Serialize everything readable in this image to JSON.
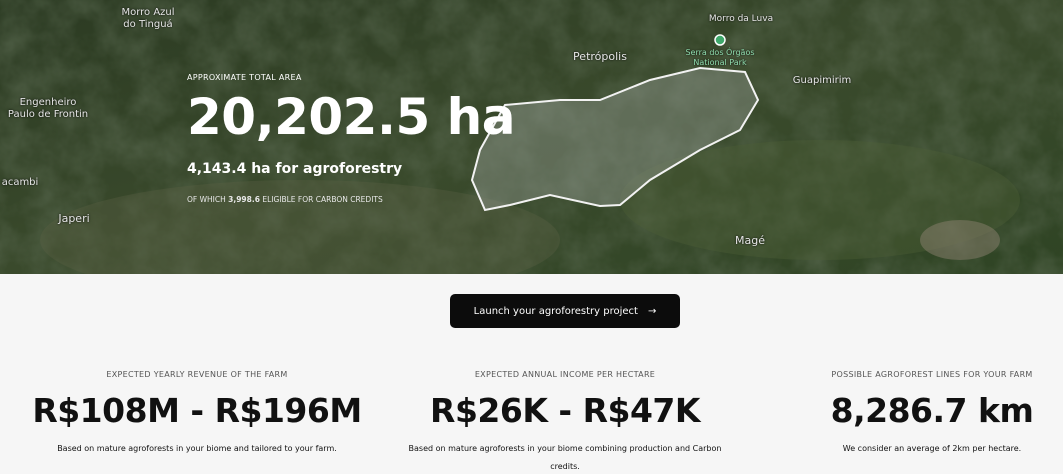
{
  "map": {
    "labels": [
      {
        "lines": [
          "Morro Azul",
          "do Tinguá"
        ]
      },
      {
        "lines": [
          "Engenheiro",
          "Paulo de Frontin"
        ]
      },
      {
        "lines": [
          "acambi"
        ]
      },
      {
        "lines": [
          "Japeri"
        ]
      },
      {
        "lines": [
          "Petrópolis"
        ]
      },
      {
        "lines": [
          "Morro da Luva"
        ]
      },
      {
        "lines": [
          "Serra dos Órgãos",
          "National Park"
        ]
      },
      {
        "lines": [
          "Guapimirim"
        ]
      },
      {
        "lines": [
          "Magé"
        ]
      }
    ]
  },
  "hero": {
    "eyebrow": "APPROXIMATE TOTAL AREA",
    "total_area": "20,202.5 ha",
    "agroforestry_area": "4,143.4 ha for agroforestry",
    "carbon": {
      "prefix": "OF WHICH",
      "amount": "3,998.6",
      "suffix": "ELIGIBLE FOR CARBON CREDITS"
    }
  },
  "cta": {
    "label": "Launch your agroforestry project",
    "arrow": "→"
  },
  "stats": [
    {
      "label": "EXPECTED YEARLY REVENUE OF THE FARM",
      "value": "R$108M - R$196M",
      "note": "Based on mature agroforests in your biome and tailored to your farm."
    },
    {
      "label": "EXPECTED ANNUAL INCOME PER HECTARE",
      "value": "R$26K - R$47K",
      "note": "Based on mature agroforests in your biome combining production and Carbon credits."
    },
    {
      "label": "POSSIBLE AGROFOREST LINES FOR YOUR FARM",
      "value": "8,286.7 km",
      "note": "We consider an average of 2km per hectare."
    }
  ]
}
